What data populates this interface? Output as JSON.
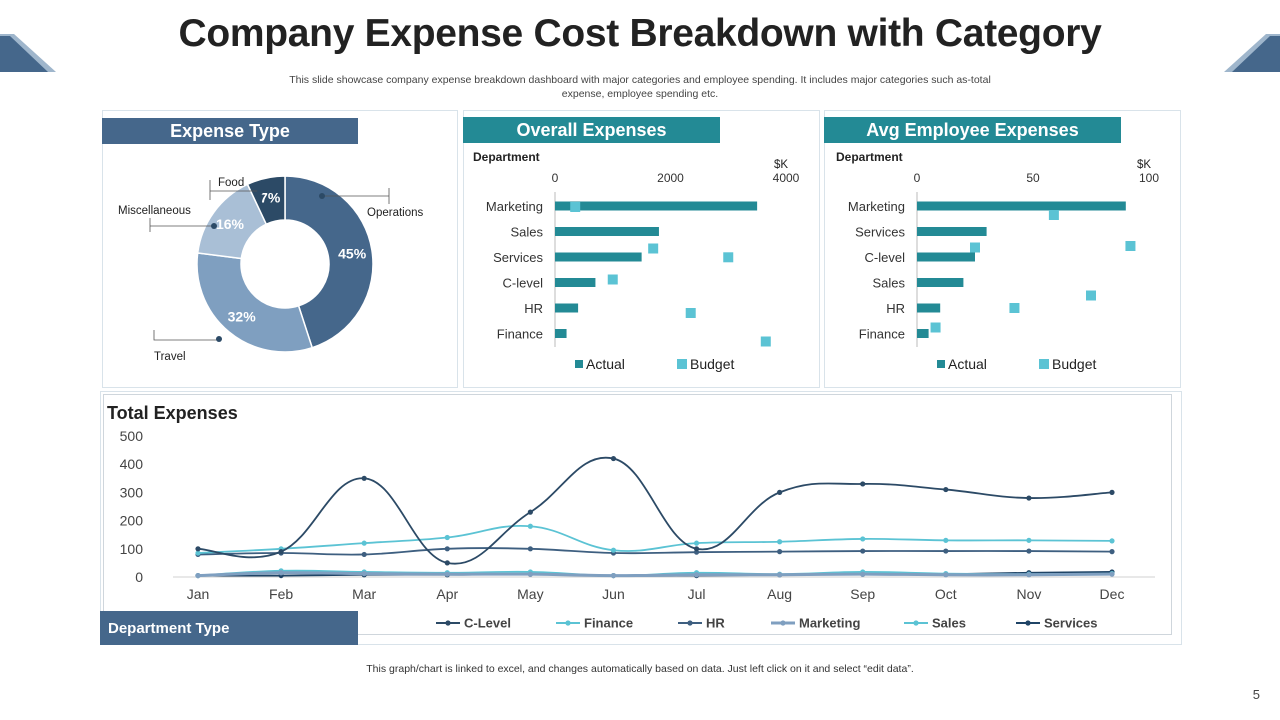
{
  "title": "Company Expense Cost Breakdown with Category",
  "subtitle_line1": "This slide showcase company expense breakdown dashboard with major categories and employee spending. It includes major categories such as-total",
  "subtitle_line2": "expense, employee spending  etc.",
  "footnote": "This graph/chart is linked to excel,  and changes automatically based on data. Just left click on it and select “edit data”.",
  "page_number": "5",
  "panels": {
    "expense_type": "Expense Type",
    "overall": "Overall Expenses",
    "avg_employee": "Avg Employee Expenses",
    "total": "Total Expenses",
    "department_type": "Department Type"
  },
  "colors": {
    "dark_blue": "#45678b",
    "teal": "#238a95",
    "light_teal": "#5bc3d4",
    "donut_ops": "#45678b",
    "donut_travel": "#7f9fc0",
    "donut_misc": "#a9bfd6",
    "donut_food": "#2c4a66"
  },
  "chart_data": [
    {
      "id": "expense-type",
      "type": "pie",
      "title": "Expense Type",
      "categories": [
        "Operations",
        "Travel",
        "Miscellaneous",
        "Food"
      ],
      "values": [
        45,
        32,
        16,
        7
      ],
      "labels": [
        "45%",
        "32%",
        "16%",
        "7%"
      ]
    },
    {
      "id": "overall-expenses",
      "type": "bar",
      "title": "Overall Expenses",
      "ylabel": "Department",
      "unit": "$K",
      "xlim": [
        0,
        4000
      ],
      "xticks": [
        "0",
        "2000",
        "4000"
      ],
      "categories": [
        "Marketing",
        "Sales",
        "Services",
        "C-level",
        "HR",
        "Finance"
      ],
      "series": [
        {
          "name": "Actual",
          "values": [
            3500,
            1800,
            1500,
            700,
            400,
            200
          ]
        },
        {
          "name": "Budget",
          "values": [
            350,
            1700,
            0,
            1000,
            2350,
            3650
          ]
        }
      ],
      "budget_extra": {
        "value": 3000,
        "row": 4.6
      }
    },
    {
      "id": "avg-employee-expenses",
      "type": "bar",
      "title": "Avg Employee Expenses",
      "ylabel": "Department",
      "unit": "$K",
      "xlim": [
        0,
        100
      ],
      "xticks": [
        "0",
        "50",
        "100"
      ],
      "categories": [
        "Marketing",
        "Services",
        "C-level",
        "Sales",
        "HR",
        "Finance"
      ],
      "series": [
        {
          "name": "Actual",
          "values": [
            90,
            30,
            25,
            20,
            10,
            5
          ]
        },
        {
          "name": "Budget",
          "values": [
            59,
            25,
            92,
            75,
            42,
            8
          ]
        }
      ]
    },
    {
      "id": "total-expenses",
      "type": "line",
      "title": "Total Expenses",
      "categories": [
        "Jan",
        "Feb",
        "Mar",
        "Apr",
        "May",
        "Jun",
        "Jul",
        "Aug",
        "Sep",
        "Oct",
        "Nov",
        "Dec"
      ],
      "ylim": [
        0,
        500
      ],
      "yticks": [
        "0",
        "100",
        "200",
        "300",
        "400",
        "500"
      ],
      "series": [
        {
          "name": "C-Level",
          "color": "#2c4a66",
          "values": [
            100,
            90,
            350,
            50,
            230,
            420,
            100,
            300,
            330,
            310,
            280,
            300
          ]
        },
        {
          "name": "Finance",
          "color": "#5bc3d4",
          "values": [
            85,
            100,
            120,
            140,
            180,
            95,
            120,
            125,
            135,
            130,
            130,
            128
          ]
        },
        {
          "name": "HR",
          "color": "#3e5f80",
          "values": [
            80,
            85,
            80,
            100,
            100,
            85,
            88,
            90,
            92,
            92,
            92,
            90
          ]
        },
        {
          "name": "Marketing",
          "color": "#7f9fc0",
          "values": [
            5,
            15,
            12,
            10,
            10,
            5,
            8,
            8,
            10,
            8,
            8,
            10
          ]
        },
        {
          "name": "Sales",
          "color": "#5bc3d4",
          "values": [
            5,
            22,
            18,
            15,
            18,
            5,
            15,
            10,
            18,
            12,
            10,
            12
          ]
        },
        {
          "name": "Services",
          "color": "#1f4466",
          "values": [
            5,
            5,
            8,
            8,
            10,
            5,
            5,
            8,
            10,
            10,
            15,
            18
          ]
        }
      ]
    }
  ]
}
